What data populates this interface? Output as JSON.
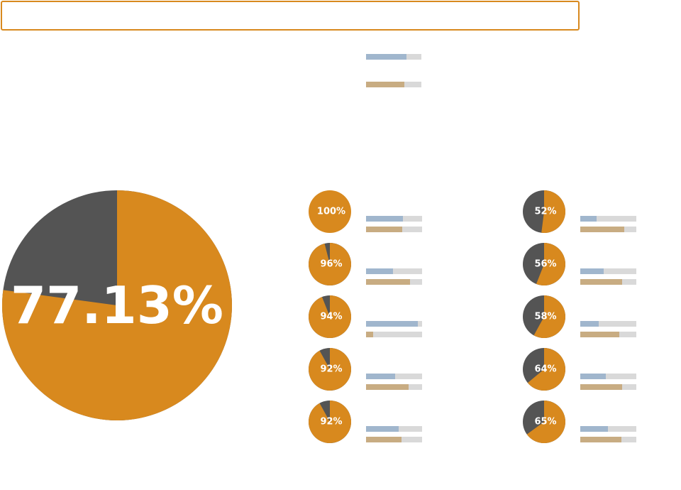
{
  "title": "",
  "colors": {
    "accent": "#d8891e",
    "dark": "#545454",
    "bar_a": "#a0b6cd",
    "bar_b": "#c8ac82",
    "track": "#d9d9d9"
  },
  "chart_data": {
    "type": "pie",
    "main": {
      "value": 77.13,
      "label": "77.13%"
    },
    "legend_bars": [
      {
        "series": "a",
        "value": 0.73
      },
      {
        "series": "b",
        "value": 0.69
      }
    ],
    "items": [
      {
        "label": "100%",
        "value": 100,
        "bar_a": 0.66,
        "bar_b": 0.65
      },
      {
        "label": "96%",
        "value": 96,
        "bar_a": 0.48,
        "bar_b": 0.78
      },
      {
        "label": "94%",
        "value": 94,
        "bar_a": 0.92,
        "bar_b": 0.13
      },
      {
        "label": "92%",
        "value": 92,
        "bar_a": 0.52,
        "bar_b": 0.76
      },
      {
        "label": "92%",
        "value": 92,
        "bar_a": 0.58,
        "bar_b": 0.63
      },
      {
        "label": "52%",
        "value": 52,
        "bar_a": 0.29,
        "bar_b": 0.78
      },
      {
        "label": "56%",
        "value": 56,
        "bar_a": 0.42,
        "bar_b": 0.74
      },
      {
        "label": "58%",
        "value": 58,
        "bar_a": 0.33,
        "bar_b": 0.7
      },
      {
        "label": "64%",
        "value": 64,
        "bar_a": 0.46,
        "bar_b": 0.75
      },
      {
        "label": "65%",
        "value": 65,
        "bar_a": 0.49,
        "bar_b": 0.73
      }
    ]
  }
}
